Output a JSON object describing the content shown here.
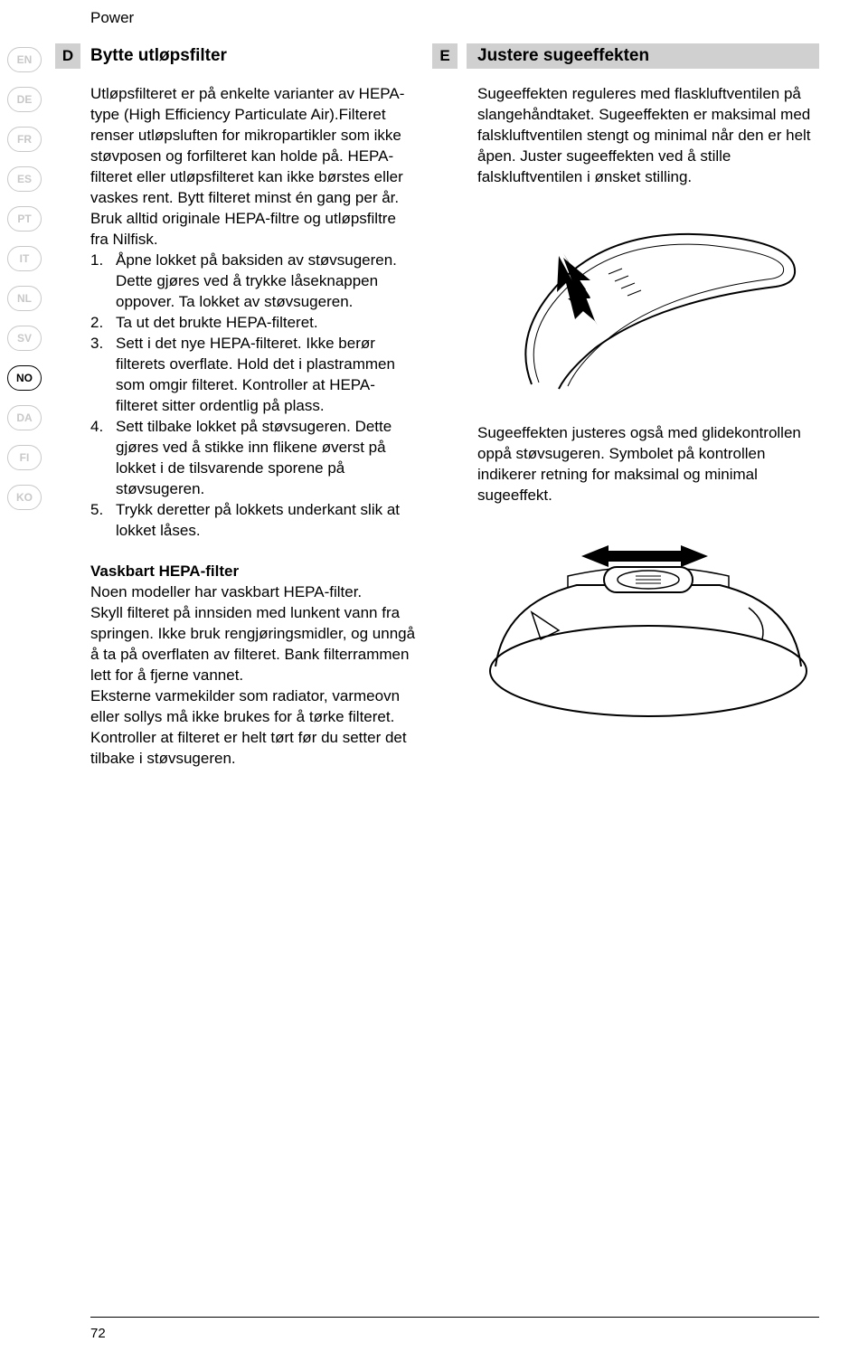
{
  "header": {
    "brand": "Power"
  },
  "langs": [
    {
      "code": "EN",
      "active": false
    },
    {
      "code": "DE",
      "active": false
    },
    {
      "code": "FR",
      "active": false
    },
    {
      "code": "ES",
      "active": false
    },
    {
      "code": "PT",
      "active": false
    },
    {
      "code": "IT",
      "active": false
    },
    {
      "code": "NL",
      "active": false
    },
    {
      "code": "SV",
      "active": false
    },
    {
      "code": "NO",
      "active": true
    },
    {
      "code": "DA",
      "active": false
    },
    {
      "code": "FI",
      "active": false
    },
    {
      "code": "KO",
      "active": false
    }
  ],
  "section_letters": {
    "d": "D",
    "e": "E"
  },
  "headings": {
    "d": "Bytte utløpsfilter",
    "e": "Justere sugeeffekten"
  },
  "left": {
    "intro": "Utløpsfilteret er på enkelte varianter av HEPA-type (High Efficiency Parti­culate Air).Filteret renser utløpsluften for mikropartikler som ikke støvposen og forfilteret kan holde på. HEPA-filte­ret eller utløpsfilteret kan ikke børstes eller vaskes rent. Bytt filteret minst én gang per år. Bruk alltid originale HEPA-filtre og utløpsfiltre fra Nilfisk.",
    "steps": [
      "Åpne lokket på baksiden av støv­sugeren. Dette gjøres ved å trykke låseknappen oppover. Ta lokket av støvsugeren.",
      "Ta ut det brukte HEPA-filteret.",
      "Sett i det nye HEPA-filteret. Ikke berør filterets overflate. Hold det i plastrammen som omgir filte­ret. Kontroller at HEPA-filteret sitter ordentlig på plass.",
      "Sett tilbake lokket på støvsugeren. Dette gjøres ved å stikke inn flike­ne øverst på lokket i de tilsvarende sporene på støvsugeren.",
      "Trykk deretter på lokkets underkant slik at lokket låses."
    ],
    "sub_heading": "Vaskbart HEPA-filter",
    "sub_p1": "Noen modeller har vaskbart HEPA-filter.",
    "sub_p2": "Skyll filteret på innsiden med lunkent vann fra springen. Ikke bruk rengjø­ringsmidler, og unngå å ta på overfla­ten av filteret. Bank filterrammen lett for å fjerne vannet.",
    "sub_p3": "Eksterne varmekilder som radiator, varmeovn eller sollys må ikke brukes for å tørke filteret.",
    "sub_p4": "Kontroller at filteret er helt tørt før du setter det tilbake i støvsugeren."
  },
  "right": {
    "p1": "Sugeeffekten reguleres med flaskluft­ventilen på slangehåndtaket. Sugeeffekten er maksimal med falsk­luftventilen stengt og minimal når den er helt åpen. Juster sugeeffekten ved å stille falskluftventilen i ønsket stilling.",
    "p2": "Sugeeffekten justeres også med glide­kontrollen oppå støvsugeren. Symbo­let på kontrollen indikerer retning for maksimal og minimal sugeeffekt."
  },
  "page_number": "72",
  "colors": {
    "section_bg": "#d0d0d0",
    "inactive": "#c8c8c8",
    "text": "#000000",
    "bg": "#ffffff"
  }
}
